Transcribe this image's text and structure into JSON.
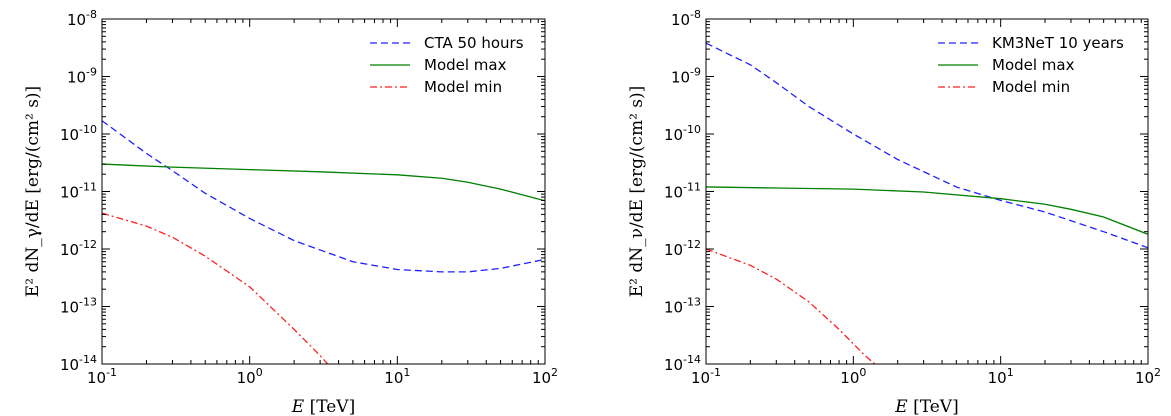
{
  "colors": {
    "series_1": "#2020ff",
    "series_2": "#008000",
    "series_3": "#ff2020"
  },
  "chart_data": [
    {
      "type": "line",
      "xscale": "log",
      "yscale": "log",
      "xlim": [
        0.1,
        100
      ],
      "ylim": [
        1e-14,
        1e-08
      ],
      "x_ticks": [
        {
          "base": "10",
          "exp": "-1"
        },
        {
          "base": "10",
          "exp": "0"
        },
        {
          "base": "10",
          "exp": "1"
        },
        {
          "base": "10",
          "exp": "2"
        }
      ],
      "y_ticks": [
        {
          "base": "10",
          "exp": "-14"
        },
        {
          "base": "10",
          "exp": "-13"
        },
        {
          "base": "10",
          "exp": "-12"
        },
        {
          "base": "10",
          "exp": "-11"
        },
        {
          "base": "10",
          "exp": "-10"
        },
        {
          "base": "10",
          "exp": "-9"
        },
        {
          "base": "10",
          "exp": "-8"
        }
      ],
      "xlabel": "E [TeV]",
      "ylabel": "E² dN_γ/dE [erg/(cm² s)]",
      "legend_placement": "upper-right",
      "series": [
        {
          "name": "CTA 50 hours",
          "style": "dashed",
          "color": "#2020ff",
          "x": [
            0.1,
            0.2,
            0.3,
            0.5,
            1,
            2,
            5,
            10,
            20,
            30,
            50,
            100
          ],
          "y": [
            1.7e-10,
            4.6e-11,
            2.3e-11,
            9.3e-12,
            3.4e-12,
            1.4e-12,
            6e-13,
            4.4e-13,
            4e-13,
            4e-13,
            4.6e-13,
            6.6e-13
          ]
        },
        {
          "name": "Model max",
          "style": "solid",
          "color": "#008000",
          "x": [
            0.1,
            0.3,
            1,
            3,
            10,
            20,
            30,
            50,
            100
          ],
          "y": [
            3e-11,
            2.65e-11,
            2.4e-11,
            2.2e-11,
            1.95e-11,
            1.7e-11,
            1.45e-11,
            1.1e-11,
            6.9e-12
          ]
        },
        {
          "name": "Model min",
          "style": "dashdot",
          "color": "#ff2020",
          "x": [
            0.1,
            0.2,
            0.3,
            0.5,
            1,
            2,
            3,
            3.5
          ],
          "y": [
            4.2e-12,
            2.5e-12,
            1.6e-12,
            7.5e-13,
            2.2e-13,
            4e-14,
            1.4e-14,
            9e-15
          ]
        }
      ]
    },
    {
      "type": "line",
      "xscale": "log",
      "yscale": "log",
      "xlim": [
        0.1,
        100
      ],
      "ylim": [
        1e-14,
        1e-08
      ],
      "x_ticks": [
        {
          "base": "10",
          "exp": "-1"
        },
        {
          "base": "10",
          "exp": "0"
        },
        {
          "base": "10",
          "exp": "1"
        },
        {
          "base": "10",
          "exp": "2"
        }
      ],
      "y_ticks": [
        {
          "base": "10",
          "exp": "-14"
        },
        {
          "base": "10",
          "exp": "-13"
        },
        {
          "base": "10",
          "exp": "-12"
        },
        {
          "base": "10",
          "exp": "-11"
        },
        {
          "base": "10",
          "exp": "-10"
        },
        {
          "base": "10",
          "exp": "-9"
        },
        {
          "base": "10",
          "exp": "-8"
        }
      ],
      "xlabel": "E [TeV]",
      "ylabel": "E² dN_ν/dE [erg/(cm² s)]",
      "legend_placement": "upper-right",
      "series": [
        {
          "name": "KM3NeT 10 years",
          "style": "dashed",
          "color": "#2020ff",
          "x": [
            0.1,
            0.2,
            0.3,
            0.5,
            1,
            2,
            5,
            10,
            20,
            50,
            100
          ],
          "y": [
            3.8e-09,
            1.6e-09,
            7.8e-10,
            3e-10,
            1e-10,
            3.6e-11,
            1.2e-11,
            7e-12,
            4.4e-12,
            2e-12,
            1.05e-12
          ]
        },
        {
          "name": "Model max",
          "style": "solid",
          "color": "#008000",
          "x": [
            0.1,
            0.3,
            1,
            3,
            10,
            20,
            30,
            50,
            100
          ],
          "y": [
            1.2e-11,
            1.15e-11,
            1.1e-11,
            9.8e-12,
            7.5e-12,
            6e-12,
            4.9e-12,
            3.6e-12,
            1.8e-12
          ]
        },
        {
          "name": "Model min",
          "style": "dashdot",
          "color": "#ff2020",
          "x": [
            0.1,
            0.2,
            0.3,
            0.5,
            0.8,
            1.2,
            1.55
          ],
          "y": [
            1e-12,
            5.2e-13,
            3e-13,
            1.2e-13,
            4e-14,
            1.4e-14,
            8e-15
          ]
        }
      ]
    }
  ]
}
